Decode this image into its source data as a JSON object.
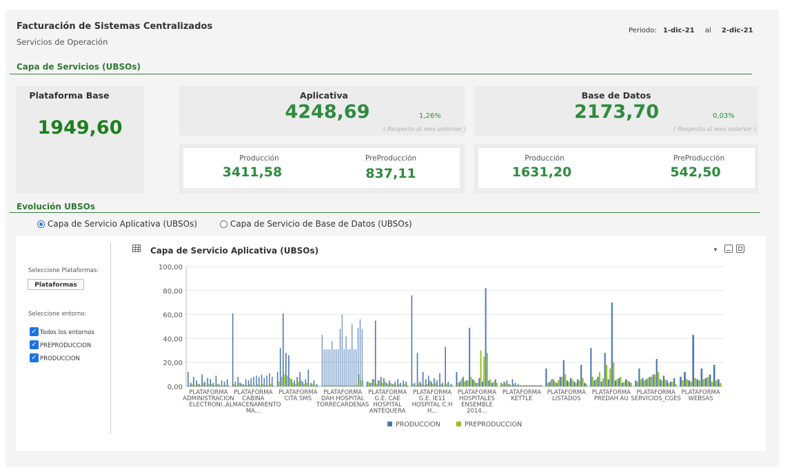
{
  "header": {
    "title": "Facturación de Sistemas Centralizados",
    "subtitle": "Servicios de Operación",
    "periodo_label": "Periodo:",
    "periodo_from": "1-dic-21",
    "periodo_sep": "al",
    "periodo_to": "2-dic-21"
  },
  "capa": {
    "section_title": "Capa de Servicios (UBSOs)",
    "plataforma_base": {
      "title": "Plataforma Base",
      "value": "1949,60"
    },
    "aplicativa": {
      "title": "Aplicativa",
      "value": "4248,69",
      "pct": "1,26%",
      "note": "( Respecto al mes anterior )",
      "produccion_label": "Producción",
      "produccion": "3411,58",
      "preproduccion_label": "PreProducción",
      "preproduccion": "837,11"
    },
    "base_datos": {
      "title": "Base de Datos",
      "value": "2173,70",
      "pct": "0,03%",
      "note": "( Respecto al mes anterior )",
      "produccion_label": "Producción",
      "produccion": "1631,20",
      "preproduccion_label": "PreProducción",
      "preproduccion": "542,50"
    }
  },
  "evolucion": {
    "section_title": "Evolución UBSOs",
    "radio_aplicativa": "Capa de Servicio Aplicativa (UBSOs)",
    "radio_bd": "Capa de Servicio de Base de Datos (UBSOs)",
    "selected": "aplicativa"
  },
  "filters": {
    "plataformas_label": "Seleccione Plataformas:",
    "plataformas_button": "Plataformas",
    "entorno_label": "Seleccione entorno:",
    "options": [
      {
        "label": "Todos los entornos",
        "checked": true
      },
      {
        "label": "PREPRODUCCION",
        "checked": true
      },
      {
        "label": "PRODUCCION",
        "checked": true
      }
    ]
  },
  "chart_panel": {
    "title": "Capa de Servicio Aplicativa (UBSOs)",
    "icons": [
      "table-icon",
      "dropdown-arrow-icon",
      "minimize-icon",
      "maximize-icon"
    ]
  },
  "chart_data": {
    "type": "bar",
    "ylim": [
      0,
      100
    ],
    "yticks": [
      "100,00",
      "80,00",
      "60,00",
      "40,00",
      "20,00",
      "0,00"
    ],
    "grid": true,
    "legend_position": "bottom",
    "categories": [
      [
        "PLATAFORMA",
        "ADMINISTRACION",
        "ELECTRONI..."
      ],
      [
        "PLATAFORMA",
        "CABINA",
        "ALMACENAMIENTO",
        "MA..."
      ],
      [
        "PLATAFORMA",
        "CITA SMS"
      ],
      [
        "PLATAFORMA",
        "DAH HOSPITAL",
        "TORRECARDENAS"
      ],
      [
        "PLATAFORMA",
        "G.E. CAE",
        "HOSPITAL",
        "ANTEQUERA"
      ],
      [
        "PLATAFORMA",
        "G.E. IE11",
        "HOSPITAL C.H",
        "H..."
      ],
      [
        "PLATAFORMA",
        "HOSPITALES",
        "ENSEMBLE",
        "2014..."
      ],
      [
        "PLATAFORMA",
        "KETTLE"
      ],
      [
        "PLATAFORMA",
        "LISTADOS"
      ],
      [
        "PLATAFORMA",
        "PREDAH AU"
      ],
      [
        "PLATAFORMA",
        "SERVICIOS_CGES"
      ],
      [
        "PLATAFORMA",
        "WEBSAS"
      ]
    ],
    "series": [
      {
        "name": "PRODUCCION",
        "color": "#4a77b4",
        "groups": [
          [
            12,
            3,
            8,
            5,
            2,
            10,
            4,
            7,
            6,
            3,
            9,
            2,
            5,
            4,
            6
          ],
          [
            61,
            4,
            8,
            3,
            2,
            6,
            5,
            7,
            8,
            9,
            8,
            10,
            7,
            9,
            11,
            8
          ],
          [
            12,
            32,
            61,
            28,
            26,
            6,
            5,
            8,
            12,
            4,
            6,
            14,
            3,
            5,
            2
          ],
          [
            43,
            31,
            31,
            31,
            31,
            38,
            31,
            31,
            31,
            48,
            60,
            31,
            42,
            31,
            31,
            52,
            31,
            31,
            49,
            56,
            48
          ],
          [
            4,
            3,
            6,
            55,
            5,
            8,
            7,
            3,
            5,
            2,
            4,
            6,
            3,
            5,
            4
          ],
          [
            76,
            3,
            28,
            4,
            12,
            6,
            9,
            4,
            7,
            5,
            11,
            3,
            33,
            4,
            2
          ],
          [
            12,
            4,
            8,
            5,
            49,
            6,
            3,
            7,
            4,
            82,
            5,
            3,
            6
          ],
          [
            3,
            4,
            5,
            2,
            6,
            3,
            2,
            1,
            1,
            1,
            1,
            1,
            1,
            1,
            1
          ],
          [
            15,
            4,
            6,
            3,
            8,
            22,
            5,
            7,
            4,
            6,
            18,
            3
          ],
          [
            32,
            5,
            8,
            4,
            28,
            6,
            70,
            5,
            7,
            3,
            6,
            4
          ],
          [
            5,
            15,
            7,
            6,
            8,
            10,
            23,
            6,
            9,
            5,
            4,
            7
          ],
          [
            8,
            12,
            5,
            43,
            6,
            15,
            7,
            10,
            18,
            6
          ]
        ]
      },
      {
        "name": "PREPRODUCCION",
        "color": "#93c01f",
        "groups": [
          [
            1,
            2,
            1,
            2,
            1,
            3,
            1,
            2,
            2,
            1,
            2,
            1,
            1,
            1,
            1
          ],
          [
            2,
            1,
            3,
            2,
            1,
            1,
            2,
            1,
            1,
            2,
            1,
            2,
            1,
            1,
            2,
            1
          ],
          [
            4,
            8,
            10,
            9,
            7,
            3,
            2,
            4,
            5,
            2,
            3,
            1,
            2,
            1,
            1
          ],
          [
            1,
            1,
            1,
            1,
            1,
            1,
            1,
            1,
            1,
            1,
            1,
            1,
            1,
            1,
            1,
            1,
            1,
            1,
            10,
            5,
            5
          ],
          [
            4,
            3,
            6,
            2,
            5,
            3,
            4,
            2,
            3,
            2,
            1,
            2,
            1,
            2,
            1
          ],
          [
            2,
            1,
            3,
            2,
            1,
            2,
            5,
            2,
            3,
            1,
            2,
            1,
            2,
            1,
            1
          ],
          [
            3,
            6,
            4,
            5,
            8,
            5,
            3,
            30,
            25,
            28,
            6,
            4,
            3
          ],
          [
            2,
            3,
            2,
            1,
            2,
            1,
            1,
            1,
            1,
            1,
            1,
            1,
            1,
            1,
            1
          ],
          [
            3,
            6,
            4,
            5,
            8,
            10,
            4,
            6,
            3,
            5,
            7,
            2
          ],
          [
            8,
            6,
            12,
            7,
            18,
            15,
            20,
            6,
            8,
            4,
            5,
            3
          ],
          [
            4,
            6,
            5,
            7,
            8,
            10,
            12,
            5,
            6,
            3,
            4,
            2
          ],
          [
            5,
            6,
            4,
            7,
            5,
            6,
            8,
            4,
            5,
            3
          ]
        ]
      }
    ]
  }
}
